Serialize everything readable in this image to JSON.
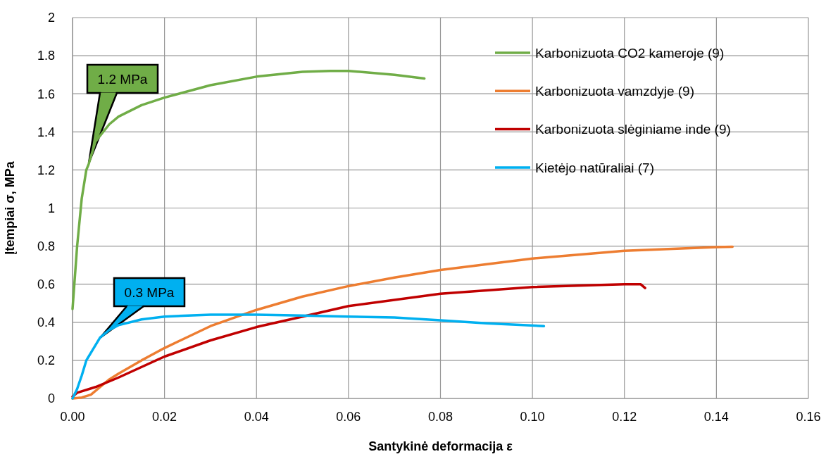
{
  "chart_data": {
    "type": "line",
    "xlabel": "Santykinė deformacija ε",
    "ylabel": "Įtempiai σ, MPa",
    "xlim": [
      0,
      0.16
    ],
    "xticks": [
      {
        "value": 0,
        "label": "0.00"
      },
      {
        "value": 0.02,
        "label": "0.02"
      },
      {
        "value": 0.04,
        "label": "0.04"
      },
      {
        "value": 0.06,
        "label": "0.06"
      },
      {
        "value": 0.08,
        "label": "0.08"
      },
      {
        "value": 0.1,
        "label": "0.10"
      },
      {
        "value": 0.12,
        "label": "0.12"
      },
      {
        "value": 0.14,
        "label": "0.14"
      },
      {
        "value": 0.16,
        "label": "0.16"
      }
    ],
    "ylim": [
      0,
      2
    ],
    "yticks": [
      0,
      0.2,
      0.4,
      0.6,
      0.8,
      1,
      1.2,
      1.4,
      1.6,
      1.8,
      2
    ],
    "grid": true,
    "legend": "top right",
    "line_style": "solid",
    "series": [
      {
        "name": "Karbonizuota CO2 kameroje (9)",
        "color": "#70ad47",
        "x": [
          0,
          0.001,
          0.002,
          0.003,
          0.0035,
          0.005,
          0.008,
          0.01,
          0.015,
          0.02,
          0.03,
          0.04,
          0.05,
          0.056,
          0.06,
          0.07,
          0.0765
        ],
        "values": [
          0.47,
          0.8,
          1.05,
          1.2,
          1.23,
          1.35,
          1.44,
          1.48,
          1.54,
          1.58,
          1.645,
          1.69,
          1.715,
          1.72,
          1.72,
          1.7,
          1.68
        ]
      },
      {
        "name": "Karbonizuota vamzdyje (9)",
        "color": "#ed7d31",
        "x": [
          0,
          0.002,
          0.004,
          0.006,
          0.008,
          0.01,
          0.015,
          0.02,
          0.03,
          0.04,
          0.05,
          0.06,
          0.07,
          0.08,
          0.1,
          0.12,
          0.14,
          0.1435
        ],
        "values": [
          0,
          0.005,
          0.02,
          0.06,
          0.1,
          0.13,
          0.2,
          0.265,
          0.38,
          0.465,
          0.535,
          0.59,
          0.635,
          0.675,
          0.735,
          0.775,
          0.795,
          0.797
        ]
      },
      {
        "name": "Karbonizuota slėginiame inde (9)",
        "color": "#c00000",
        "x": [
          0,
          0.001,
          0.005,
          0.01,
          0.02,
          0.03,
          0.04,
          0.05,
          0.06,
          0.08,
          0.1,
          0.12,
          0.1235,
          0.1245
        ],
        "values": [
          0.01,
          0.03,
          0.06,
          0.11,
          0.22,
          0.305,
          0.375,
          0.43,
          0.485,
          0.55,
          0.585,
          0.6,
          0.6,
          0.58
        ]
      },
      {
        "name": "Kietėjo natūraliai (7)",
        "color": "#00b0f0",
        "x": [
          0,
          0.001,
          0.002,
          0.003,
          0.0045,
          0.006,
          0.008,
          0.01,
          0.015,
          0.02,
          0.03,
          0.04,
          0.05,
          0.06,
          0.07,
          0.08,
          0.09,
          0.1025
        ],
        "values": [
          0,
          0.05,
          0.12,
          0.2,
          0.26,
          0.32,
          0.36,
          0.385,
          0.415,
          0.43,
          0.44,
          0.44,
          0.435,
          0.43,
          0.425,
          0.41,
          0.395,
          0.38
        ]
      }
    ],
    "annotations": [
      "1.2 MPa",
      "0.3 MPa"
    ]
  }
}
